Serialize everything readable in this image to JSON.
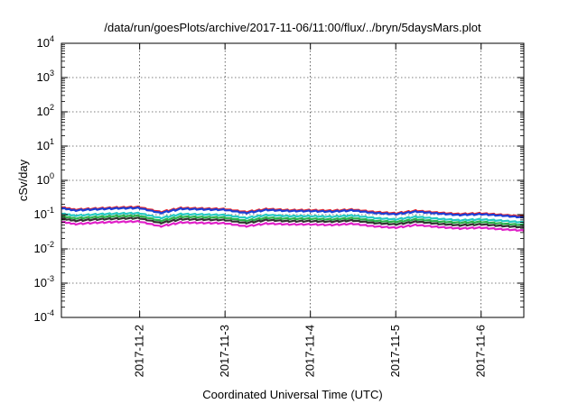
{
  "chart_data": {
    "type": "line",
    "title": "/data/run/goesPlots/archive/2017-11-06/11:00/flux/../bryn/5daysMars.plot",
    "xlabel": "Coordinated Universal Time (UTC)",
    "ylabel": "cSv/day",
    "yscale": "log",
    "ylim": [
      0.0001,
      10000
    ],
    "xlim": [
      "2017-11-01T02:00",
      "2017-11-06T12:00"
    ],
    "grid": true,
    "legend": "none",
    "x_tick_labels": [
      "2017-11-2",
      "2017-11-3",
      "2017-11-4",
      "2017-11-5",
      "2017-11-6"
    ],
    "x_tick_dates": [
      "2017-11-02",
      "2017-11-03",
      "2017-11-04",
      "2017-11-05",
      "2017-11-06"
    ],
    "y_ticks": [
      {
        "value": 0.0001,
        "base": "10",
        "exp": "-4"
      },
      {
        "value": 0.001,
        "base": "10",
        "exp": "-3"
      },
      {
        "value": 0.01,
        "base": "10",
        "exp": "-2"
      },
      {
        "value": 0.1,
        "base": "10",
        "exp": "-1"
      },
      {
        "value": 1,
        "base": "10",
        "exp": "0"
      },
      {
        "value": 10,
        "base": "10",
        "exp": "1"
      },
      {
        "value": 100,
        "base": "10",
        "exp": "2"
      },
      {
        "value": 1000,
        "base": "10",
        "exp": "3"
      },
      {
        "value": 10000,
        "base": "10",
        "exp": "4"
      }
    ],
    "x": [
      "2017-11-01T02:00",
      "2017-11-01T06:00",
      "2017-11-01T12:00",
      "2017-11-01T18:00",
      "2017-11-02T00:00",
      "2017-11-02T06:00",
      "2017-11-02T12:00",
      "2017-11-02T18:00",
      "2017-11-03T00:00",
      "2017-11-03T06:00",
      "2017-11-03T12:00",
      "2017-11-03T18:00",
      "2017-11-04T00:00",
      "2017-11-04T06:00",
      "2017-11-04T12:00",
      "2017-11-04T18:00",
      "2017-11-05T00:00",
      "2017-11-05T06:00",
      "2017-11-05T12:00",
      "2017-11-05T18:00",
      "2017-11-06T00:00",
      "2017-11-06T06:00",
      "2017-11-06T12:00"
    ],
    "series": [
      {
        "color": "#e8262b",
        "values": [
          0.16,
          0.135,
          0.145,
          0.155,
          0.16,
          0.115,
          0.15,
          0.145,
          0.14,
          0.115,
          0.14,
          0.13,
          0.13,
          0.125,
          0.135,
          0.115,
          0.105,
          0.125,
          0.11,
          0.1,
          0.105,
          0.095,
          0.085
        ]
      },
      {
        "color": "#1c3fd6",
        "values": [
          0.15,
          0.128,
          0.138,
          0.147,
          0.15,
          0.108,
          0.142,
          0.137,
          0.133,
          0.108,
          0.132,
          0.123,
          0.122,
          0.118,
          0.128,
          0.108,
          0.099,
          0.118,
          0.104,
          0.094,
          0.099,
          0.09,
          0.08
        ]
      },
      {
        "color": "#26c9c4",
        "values": [
          0.105,
          0.09,
          0.098,
          0.104,
          0.106,
          0.077,
          0.1,
          0.097,
          0.094,
          0.077,
          0.094,
          0.087,
          0.087,
          0.084,
          0.091,
          0.077,
          0.07,
          0.084,
          0.073,
          0.066,
          0.07,
          0.064,
          0.057
        ]
      },
      {
        "color": "#2bb14a",
        "values": [
          0.088,
          0.075,
          0.082,
          0.087,
          0.089,
          0.064,
          0.084,
          0.081,
          0.079,
          0.064,
          0.078,
          0.073,
          0.073,
          0.07,
          0.076,
          0.064,
          0.059,
          0.07,
          0.061,
          0.056,
          0.059,
          0.053,
          0.048
        ]
      },
      {
        "color": "#333333",
        "values": [
          0.075,
          0.064,
          0.07,
          0.074,
          0.076,
          0.055,
          0.071,
          0.069,
          0.067,
          0.055,
          0.067,
          0.062,
          0.062,
          0.06,
          0.065,
          0.055,
          0.05,
          0.06,
          0.052,
          0.047,
          0.05,
          0.045,
          0.041
        ]
      },
      {
        "color": "#e020c8",
        "values": [
          0.06,
          0.051,
          0.056,
          0.059,
          0.061,
          0.044,
          0.057,
          0.055,
          0.054,
          0.044,
          0.053,
          0.05,
          0.05,
          0.048,
          0.052,
          0.044,
          0.04,
          0.048,
          0.042,
          0.038,
          0.04,
          0.036,
          0.033
        ]
      }
    ]
  }
}
